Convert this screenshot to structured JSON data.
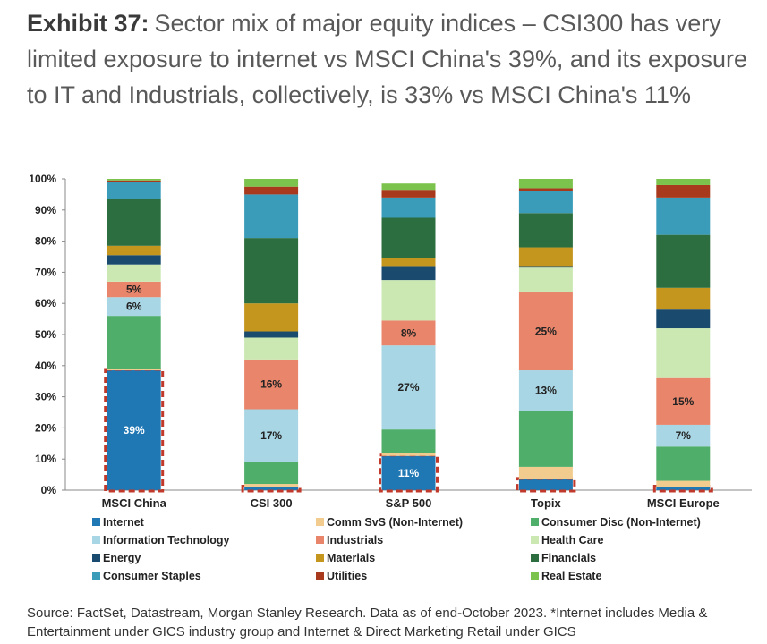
{
  "header": {
    "label": "Exhibit 37:",
    "text": "Sector mix of major equity indices – CSI300 has very limited exposure to internet vs MSCI China's 39%, and its exposure to IT and Industrials, collectively, is 33% vs MSCI China's 11%"
  },
  "chart_data": {
    "type": "bar",
    "stacked": true,
    "percent": true,
    "categories": [
      "MSCI China",
      "CSI 300",
      "S&P 500",
      "Topix",
      "MSCI Europe"
    ],
    "ylim": [
      0,
      100
    ],
    "yticks": [
      "0%",
      "10%",
      "20%",
      "30%",
      "40%",
      "50%",
      "60%",
      "70%",
      "80%",
      "90%",
      "100%"
    ],
    "legend_position": "bottom",
    "series": [
      {
        "name": "Internet",
        "color": "#1f77b4",
        "values": [
          38.5,
          1,
          11,
          3.5,
          1
        ]
      },
      {
        "name": "Comm SvS (Non-Internet)",
        "color": "#f2cc8f",
        "values": [
          0.5,
          1,
          1,
          4,
          2
        ]
      },
      {
        "name": "Consumer Disc (Non-Internet)",
        "color": "#4fae6a",
        "values": [
          17,
          7,
          7.5,
          18,
          11
        ]
      },
      {
        "name": "Information Technology",
        "color": "#a9d6e4",
        "values": [
          6,
          17,
          27,
          13,
          7
        ]
      },
      {
        "name": "Industrials",
        "color": "#e8856a",
        "values": [
          5,
          16,
          8,
          25,
          15
        ]
      },
      {
        "name": "Health Care",
        "color": "#cbe8b3",
        "values": [
          5.5,
          7,
          13,
          8,
          16
        ]
      },
      {
        "name": "Energy",
        "color": "#1a4b6e",
        "values": [
          3,
          2,
          4.5,
          0.5,
          6
        ]
      },
      {
        "name": "Materials",
        "color": "#c4961e",
        "values": [
          3,
          9,
          2.5,
          6,
          7
        ]
      },
      {
        "name": "Financials",
        "color": "#2c6e3f",
        "values": [
          15,
          21,
          13,
          11,
          17
        ]
      },
      {
        "name": "Consumer Staples",
        "color": "#3a9cb8",
        "values": [
          5.5,
          14,
          6.5,
          7,
          12
        ]
      },
      {
        "name": "Utilities",
        "color": "#a8391d",
        "values": [
          0.5,
          2.5,
          2.5,
          1,
          4
        ]
      },
      {
        "name": "Real Estate",
        "color": "#7bc34c",
        "values": [
          0.5,
          2.5,
          2,
          3,
          2
        ]
      }
    ],
    "data_labels": [
      {
        "bar": 0,
        "series": 0,
        "text": "39%",
        "color": "#ffffff"
      },
      {
        "bar": 0,
        "series": 3,
        "text": "6%",
        "color": "#222222"
      },
      {
        "bar": 0,
        "series": 4,
        "text": "5%",
        "color": "#222222"
      },
      {
        "bar": 1,
        "series": 3,
        "text": "17%",
        "color": "#222222"
      },
      {
        "bar": 1,
        "series": 4,
        "text": "16%",
        "color": "#222222"
      },
      {
        "bar": 2,
        "series": 0,
        "text": "11%",
        "color": "#ffffff"
      },
      {
        "bar": 2,
        "series": 3,
        "text": "27%",
        "color": "#222222"
      },
      {
        "bar": 2,
        "series": 4,
        "text": "8%",
        "color": "#222222"
      },
      {
        "bar": 3,
        "series": 3,
        "text": "13%",
        "color": "#222222"
      },
      {
        "bar": 3,
        "series": 4,
        "text": "25%",
        "color": "#222222"
      },
      {
        "bar": 4,
        "series": 3,
        "text": "7%",
        "color": "#222222"
      },
      {
        "bar": 4,
        "series": 4,
        "text": "15%",
        "color": "#222222"
      }
    ],
    "highlight_series": "Internet",
    "highlight_color": "#c0392b"
  },
  "source": "Source: FactSet, Datastream, Morgan Stanley Research. Data as of end-October 2023. *Internet includes Media & Entertainment under GICS industry group and Internet & Direct Marketing Retail under GICS"
}
